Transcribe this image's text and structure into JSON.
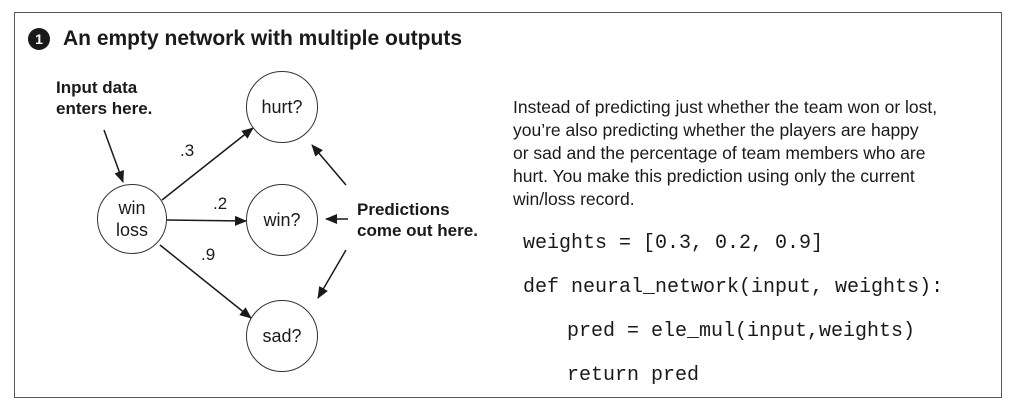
{
  "heading": {
    "badge": "1",
    "text": "An empty network with multiple outputs"
  },
  "annotations": {
    "input_line1": "Input data",
    "input_line2": "enters here.",
    "predictions_line1": "Predictions",
    "predictions_line2": "come out here."
  },
  "nodes": {
    "input_line1": "win",
    "input_line2": "loss",
    "hurt": "hurt?",
    "win": "win?",
    "sad": "sad?"
  },
  "weights": {
    "hurt": ".3",
    "win": ".2",
    "sad": ".9"
  },
  "description": [
    "Instead of predicting just whether the team won or lost,",
    "you’re also predicting whether the players are happy",
    "or sad and the percentage of team members who are",
    "hurt. You make this prediction using only the current",
    "win/loss record."
  ],
  "code": [
    "weights = [0.3, 0.2, 0.9]",
    "def neural_network(input, weights):",
    "pred = ele_mul(input,weights)",
    "return pred"
  ]
}
